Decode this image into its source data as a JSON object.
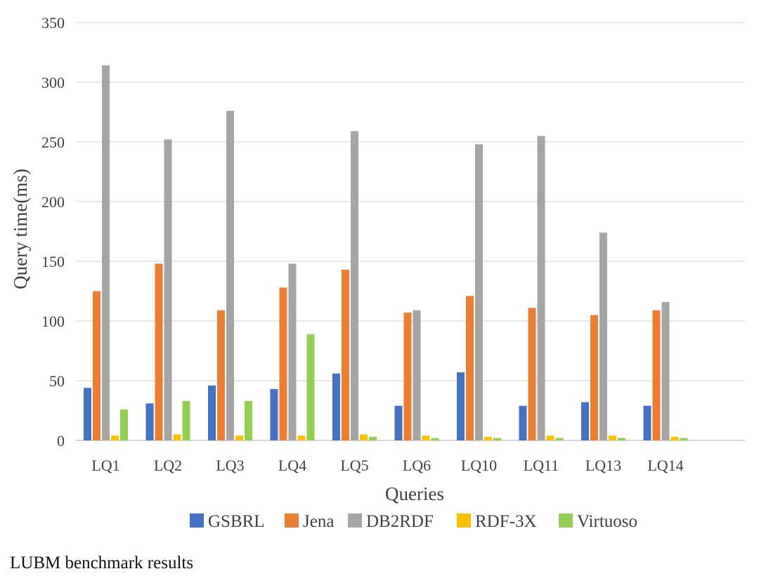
{
  "chart_data": {
    "type": "bar",
    "title": "",
    "xlabel": "Queries",
    "ylabel": "Query time(ms)",
    "ylim": [
      0,
      350
    ],
    "yticks": [
      0,
      50,
      100,
      150,
      200,
      250,
      300,
      350
    ],
    "grid": true,
    "legend_position": "bottom",
    "categories": [
      "LQ1",
      "LQ2",
      "LQ3",
      "LQ4",
      "LQ5",
      "LQ6",
      "LQ10",
      "LQ11",
      "LQ13",
      "LQ14"
    ],
    "series": [
      {
        "name": "GSBRL",
        "color": "#4472C4",
        "values": [
          44,
          31,
          46,
          43,
          56,
          29,
          57,
          29,
          32,
          29
        ]
      },
      {
        "name": "Jena",
        "color": "#ED7D31",
        "values": [
          125,
          148,
          109,
          128,
          143,
          107,
          121,
          111,
          105,
          109
        ]
      },
      {
        "name": "DB2RDF",
        "color": "#A5A5A5",
        "values": [
          314,
          252,
          276,
          148,
          259,
          109,
          248,
          255,
          174,
          116
        ]
      },
      {
        "name": "RDF-3X",
        "color": "#FFC000",
        "values": [
          4,
          5,
          4,
          4,
          5,
          4,
          3,
          4,
          4,
          3
        ]
      },
      {
        "name": "Virtuoso",
        "color": "#92D050",
        "values": [
          26,
          33,
          33,
          89,
          3,
          2,
          2,
          2,
          2,
          2
        ]
      }
    ]
  },
  "caption": "LUBM benchmark results"
}
